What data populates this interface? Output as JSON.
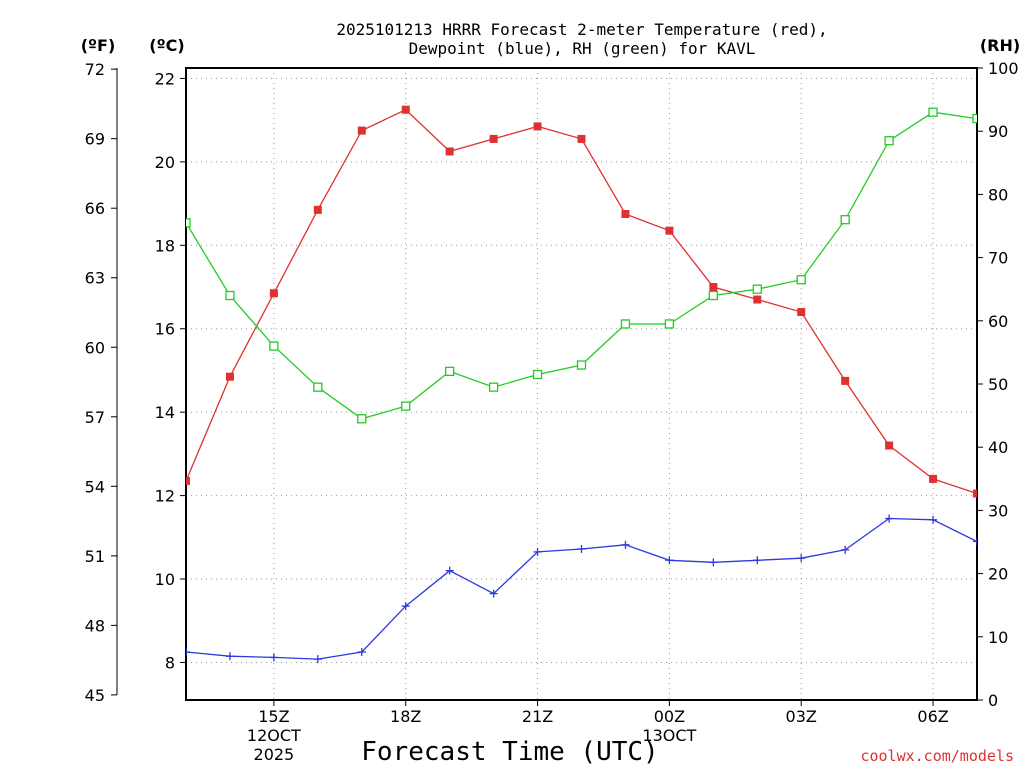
{
  "chart_data": {
    "type": "line",
    "title_line1": "2025101213 HRRR Forecast 2-meter Temperature (red),",
    "title_line2": "Dewpoint (blue), RH (green) for KAVL",
    "xlabel": "Forecast Time (UTC)",
    "credit": "coolwx.com/models",
    "x_hours": [
      0,
      1,
      2,
      3,
      4,
      5,
      6,
      7,
      8,
      9,
      10,
      11,
      12,
      13,
      14,
      15,
      16,
      17,
      18
    ],
    "x_tick_hours": [
      2,
      5,
      8,
      11,
      14,
      17
    ],
    "x_tick_labels": [
      "15Z",
      "18Z",
      "21Z",
      "00Z",
      "03Z",
      "06Z"
    ],
    "x_date_labels": [
      {
        "hour": 2,
        "lines": [
          "12OCT",
          "2025"
        ]
      },
      {
        "hour": 11,
        "lines": [
          "13OCT"
        ]
      }
    ],
    "left_axis_f": {
      "unit": "(ºF)",
      "ticks": [
        "72",
        "69",
        "66",
        "63",
        "60",
        "57",
        "54",
        "51",
        "48",
        "45"
      ]
    },
    "left_axis_c": {
      "unit": "(ºC)",
      "ticks": [
        "22",
        "20",
        "18",
        "16",
        "14",
        "12",
        "10",
        "8"
      ]
    },
    "right_axis_rh": {
      "unit": "(RH)",
      "ticks": [
        "100",
        "90",
        "80",
        "70",
        "60",
        "50",
        "40",
        "30",
        "20",
        "10",
        "0"
      ]
    },
    "ylim_c": [
      7.1,
      22.25
    ],
    "ylim_rh": [
      0,
      100
    ],
    "series": [
      {
        "name": "Temperature (°C)",
        "color": "#e03030",
        "marker": "filled-square",
        "values": [
          12.35,
          14.85,
          16.85,
          18.85,
          20.75,
          21.25,
          20.25,
          20.55,
          20.85,
          20.55,
          18.75,
          18.35,
          17.0,
          16.7,
          16.4,
          14.75,
          13.2,
          12.4,
          12.05
        ]
      },
      {
        "name": "Dewpoint (°C)",
        "color": "#2a3ae0",
        "marker": "plus",
        "values": [
          8.25,
          8.15,
          8.12,
          8.08,
          8.25,
          9.35,
          10.2,
          9.65,
          10.65,
          10.72,
          10.82,
          10.45,
          10.4,
          10.45,
          10.5,
          10.7,
          11.45,
          11.42,
          10.9
        ]
      },
      {
        "name": "RH (%)",
        "color": "#22cc22",
        "marker": "open-square",
        "values": [
          75.5,
          64,
          56,
          49.5,
          44.5,
          46.5,
          52,
          49.5,
          51.5,
          53,
          59.5,
          59.5,
          64,
          65,
          66.5,
          76,
          88.5,
          93,
          92
        ]
      }
    ]
  }
}
